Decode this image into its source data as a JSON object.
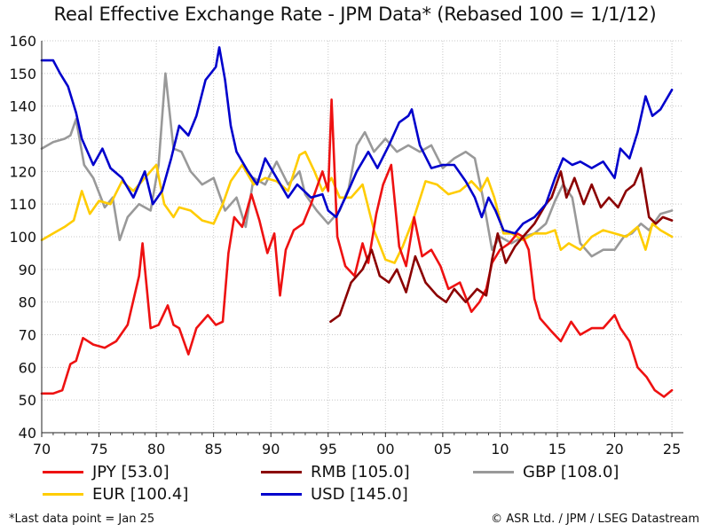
{
  "chart_data": {
    "type": "line",
    "title": "Real Effective Exchange Rate - JPM Data* (Rebased 100 = 1/1/12)",
    "xlabel": "",
    "ylabel": "",
    "xlim": [
      1970,
      2026
    ],
    "ylim": [
      40,
      160
    ],
    "grid": true,
    "x_ticks": [
      1970,
      1975,
      1980,
      1985,
      1990,
      1995,
      2000,
      2005,
      2010,
      2015,
      2020,
      2025
    ],
    "x_tick_labels": [
      "70",
      "75",
      "80",
      "85",
      "90",
      "95",
      "00",
      "05",
      "10",
      "15",
      "20",
      "25"
    ],
    "y_ticks": [
      40,
      50,
      60,
      70,
      80,
      90,
      100,
      110,
      120,
      130,
      140,
      150,
      160
    ],
    "y_tick_labels": [
      "40",
      "50",
      "60",
      "70",
      "80",
      "90",
      "100",
      "110",
      "120",
      "130",
      "140",
      "150",
      "160"
    ],
    "series": [
      {
        "name": "JPY [53.0]",
        "color": "#ee1111",
        "x": [
          1970,
          1971,
          1971.8,
          1972.5,
          1973,
          1973.6,
          1974.5,
          1975.5,
          1976.5,
          1977.5,
          1978.5,
          1978.8,
          1979.5,
          1980.2,
          1981,
          1981.5,
          1982,
          1982.8,
          1983.5,
          1984.5,
          1985.2,
          1985.8,
          1986.3,
          1986.8,
          1987.5,
          1988.3,
          1989,
          1989.7,
          1990.3,
          1990.8,
          1991.3,
          1992,
          1992.8,
          1993.5,
          1994.5,
          1995,
          1995.3,
          1995.8,
          1996.5,
          1997.3,
          1998,
          1998.5,
          1999.2,
          1999.8,
          2000.5,
          2001.2,
          2001.8,
          2002.5,
          2003.2,
          2004,
          2004.8,
          2005.5,
          2006.5,
          2007.5,
          2008.2,
          2008.8,
          2009.3,
          2010,
          2010.8,
          2011.5,
          2012,
          2012.5,
          2013,
          2013.5,
          2014.5,
          2015.3,
          2016.2,
          2017,
          2018,
          2019,
          2020,
          2020.5,
          2021.3,
          2022,
          2022.8,
          2023.5,
          2024.3,
          2025
        ],
        "values": [
          52,
          52,
          53,
          61,
          62,
          69,
          67,
          66,
          68,
          73,
          88,
          98,
          72,
          73,
          79,
          73,
          72,
          64,
          72,
          76,
          73,
          74,
          95,
          106,
          103,
          113,
          105,
          95,
          101,
          82,
          96,
          102,
          104,
          110,
          120,
          114,
          142,
          100,
          91,
          88,
          98,
          92,
          107,
          116,
          122,
          97,
          91,
          106,
          94,
          96,
          91,
          84,
          86,
          77,
          80,
          84,
          92,
          96,
          98,
          101,
          100,
          96,
          81,
          75,
          71,
          68,
          74,
          70,
          72,
          72,
          76,
          72,
          68,
          60,
          57,
          53,
          51,
          53
        ]
      },
      {
        "name": "RMB [105.0]",
        "color": "#8b0000",
        "x": [
          1995.2,
          1996,
          1997,
          1998,
          1998.8,
          1999.5,
          2000.3,
          2001,
          2001.8,
          2002.6,
          2003.5,
          2004.5,
          2005.3,
          2006,
          2007,
          2008,
          2008.8,
          2009.3,
          2009.8,
          2010.5,
          2011.3,
          2012,
          2013,
          2014,
          2014.5,
          2015.3,
          2015.8,
          2016.5,
          2017.3,
          2018,
          2018.8,
          2019.5,
          2020.3,
          2021,
          2021.7,
          2022.3,
          2023,
          2023.6,
          2024.2,
          2025
        ],
        "values": [
          74,
          76,
          86,
          90,
          96,
          88,
          86,
          90,
          83,
          94,
          86,
          82,
          80,
          84,
          80,
          84,
          82,
          93,
          101,
          92,
          97,
          100,
          104,
          110,
          112,
          120,
          112,
          118,
          110,
          116,
          109,
          112,
          109,
          114,
          116,
          121,
          106,
          104,
          106,
          105
        ]
      },
      {
        "name": "GBP [108.0]",
        "color": "#999999",
        "x": [
          1970,
          1971,
          1972,
          1972.5,
          1973,
          1973.7,
          1974.5,
          1975.5,
          1976.2,
          1976.8,
          1977.5,
          1978.5,
          1979.5,
          1980.2,
          1980.8,
          1981.5,
          1982.2,
          1983,
          1984,
          1985,
          1986,
          1987,
          1987.8,
          1988.5,
          1989.5,
          1990.5,
          1991.5,
          1992.5,
          1993,
          1994,
          1995,
          1996,
          1996.8,
          1997.5,
          1998.2,
          1999,
          2000,
          2001,
          2002,
          2003,
          2004,
          2005,
          2006,
          2007,
          2007.8,
          2008.5,
          2009.3,
          2010,
          2011,
          2012,
          2013,
          2014,
          2014.8,
          2015.5,
          2016.3,
          2017,
          2018,
          2019,
          2020,
          2020.8,
          2021.5,
          2022.3,
          2023,
          2024,
          2025
        ],
        "values": [
          127,
          129,
          130,
          131,
          136,
          122,
          118,
          109,
          112,
          99,
          106,
          110,
          108,
          122,
          150,
          127,
          126,
          120,
          116,
          118,
          108,
          112,
          103,
          118,
          116,
          123,
          116,
          120,
          113,
          108,
          104,
          108,
          115,
          128,
          132,
          126,
          130,
          126,
          128,
          126,
          128,
          121,
          124,
          126,
          124,
          112,
          96,
          100,
          98,
          100,
          101,
          104,
          111,
          116,
          112,
          98,
          94,
          96,
          96,
          100,
          101,
          104,
          102,
          107,
          108
        ]
      },
      {
        "name": "EUR [100.4]",
        "color": "#ffcc00",
        "x": [
          1970,
          1971,
          1972,
          1972.8,
          1973.5,
          1974.2,
          1975,
          1976,
          1977,
          1978,
          1979,
          1980,
          1980.7,
          1981.5,
          1982,
          1983,
          1984,
          1985,
          1985.8,
          1986.5,
          1987.5,
          1988.5,
          1989.5,
          1990.5,
          1991.5,
          1992.5,
          1993,
          1993.8,
          1994.5,
          1995.3,
          1996,
          1997,
          1998,
          1999,
          2000,
          2000.8,
          2001.5,
          2002.5,
          2003.5,
          2004.5,
          2005.5,
          2006.5,
          2007.5,
          2008.3,
          2008.9,
          2009.5,
          2010.3,
          2011,
          2012,
          2013,
          2014,
          2014.8,
          2015.3,
          2016,
          2017,
          2018,
          2019,
          2020,
          2021,
          2022,
          2022.7,
          2023.3,
          2024,
          2025
        ],
        "values": [
          99,
          101,
          103,
          105,
          114,
          107,
          111,
          110,
          117,
          114,
          118,
          122,
          110,
          106,
          109,
          108,
          105,
          104,
          110,
          117,
          122,
          116,
          118,
          117,
          114,
          125,
          126,
          120,
          114,
          118,
          112,
          112,
          116,
          102,
          93,
          92,
          97,
          106,
          117,
          116,
          113,
          114,
          117,
          114,
          118,
          112,
          101,
          101,
          99,
          101,
          101,
          102,
          96,
          98,
          96,
          100,
          102,
          101,
          100,
          103,
          96,
          104,
          102,
          100
        ]
      },
      {
        "name": "USD [145.0]",
        "color": "#0000cc",
        "x": [
          1970,
          1971,
          1971.6,
          1972.3,
          1973,
          1973.5,
          1974.5,
          1975.3,
          1976,
          1977,
          1978,
          1979,
          1979.7,
          1980.5,
          1981.3,
          1982,
          1982.8,
          1983.5,
          1984.3,
          1985.2,
          1985.5,
          1986,
          1986.5,
          1987,
          1988,
          1988.8,
          1989.5,
          1990.5,
          1991.5,
          1992.3,
          1993.5,
          1994.5,
          1995,
          1995.7,
          1996.5,
          1997.5,
          1998.5,
          1999.3,
          2000.3,
          2001.2,
          2002,
          2002.3,
          2003,
          2004,
          2005,
          2006,
          2007,
          2007.8,
          2008.4,
          2009,
          2009.6,
          2010.3,
          2011.3,
          2012,
          2013,
          2014,
          2014.8,
          2015.5,
          2016.3,
          2017,
          2018,
          2019,
          2020,
          2020.5,
          2021.3,
          2022,
          2022.7,
          2023.3,
          2024,
          2025
        ],
        "values": [
          154,
          154,
          150,
          146,
          138,
          130,
          122,
          127,
          121,
          118,
          112,
          120,
          110,
          114,
          124,
          134,
          131,
          137,
          148,
          152,
          158,
          148,
          134,
          126,
          120,
          116,
          124,
          118,
          112,
          116,
          112,
          113,
          108,
          106,
          112,
          120,
          126,
          121,
          128,
          135,
          137,
          139,
          128,
          121,
          122,
          122,
          117,
          112,
          106,
          112,
          108,
          102,
          101,
          104,
          106,
          110,
          118,
          124,
          122,
          123,
          121,
          123,
          118,
          127,
          124,
          132,
          143,
          137,
          139,
          145
        ]
      }
    ],
    "legend": {
      "position": "bottom",
      "items": [
        "JPY [53.0]",
        "RMB [105.0]",
        "GBP [108.0]",
        "EUR [100.4]",
        "USD [145.0]"
      ]
    }
  },
  "footnote": "*Last data point = Jan 25",
  "source": "© ASR Ltd.  /  JPM  /  LSEG Datastream"
}
